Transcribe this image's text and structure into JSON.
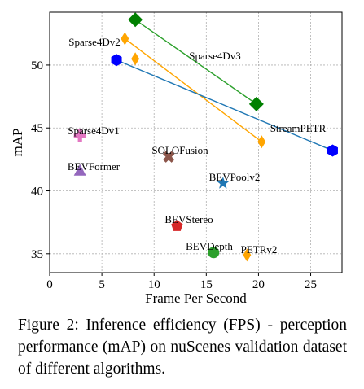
{
  "chart_data": {
    "type": "scatter",
    "xlabel": "Frame Per Second",
    "ylabel": "mAP",
    "xlim": [
      0,
      28
    ],
    "ylim": [
      33.5,
      54.2
    ],
    "xticks": [
      0,
      5,
      10,
      15,
      20,
      25
    ],
    "yticks": [
      35,
      40,
      45,
      50
    ],
    "grid": true,
    "points": [
      {
        "label": "Sparse4Dv2",
        "points": [
          [
            7.2,
            52.1
          ],
          [
            8.2,
            50.5
          ],
          [
            20.3,
            43.9
          ]
        ],
        "color": "#ffa500",
        "marker": "diamond-thin"
      },
      {
        "label": "Sparse4Dv3",
        "points": [
          [
            8.2,
            53.6
          ],
          [
            19.8,
            46.9
          ]
        ],
        "color": "#008000",
        "marker": "diamond"
      },
      {
        "label": "StreamPETR",
        "points": [
          [
            6.4,
            50.4
          ],
          [
            27.1,
            43.2
          ]
        ],
        "color": "#0000ff",
        "marker": "hexagon"
      },
      {
        "label": "Sparse4Dv1",
        "points": [
          [
            2.9,
            44.4
          ]
        ],
        "color": "#e377c2",
        "marker": "plus"
      },
      {
        "label": "BEVFormer",
        "points": [
          [
            2.9,
            41.6
          ]
        ],
        "color": "#9467bd",
        "marker": "triangle"
      },
      {
        "label": "SOLOFusion",
        "points": [
          [
            11.4,
            42.7
          ]
        ],
        "color": "#8c564b",
        "marker": "x"
      },
      {
        "label": "BEVPoolv2",
        "points": [
          [
            16.6,
            40.6
          ]
        ],
        "color": "#1f77b4",
        "marker": "star"
      },
      {
        "label": "BEVStereo",
        "points": [
          [
            12.2,
            37.2
          ]
        ],
        "color": "#d62728",
        "marker": "pentagon"
      },
      {
        "label": "BEVDepth",
        "points": [
          [
            15.7,
            35.1
          ]
        ],
        "color": "#2ca02c",
        "marker": "circle"
      },
      {
        "label": "PETRv2",
        "points": [
          [
            18.9,
            34.9
          ]
        ],
        "color": "#ffa500",
        "marker": "diamond-thin"
      }
    ],
    "lines": [
      {
        "series": "Sparse4Dv2",
        "from": [
          7.2,
          52.1
        ],
        "to": [
          20.3,
          43.9
        ],
        "color": "#ffa500"
      },
      {
        "series": "Sparse4Dv3",
        "from": [
          8.2,
          53.6
        ],
        "to": [
          19.8,
          46.9
        ],
        "color": "#2ca02c"
      },
      {
        "series": "StreamPETR",
        "from": [
          6.4,
          50.4
        ],
        "to": [
          27.1,
          43.2
        ],
        "color": "#1f77b4"
      }
    ]
  },
  "caption": "Figure 2: Inference efficiency (FPS) - perception performance (mAP) on nuScenes validation dataset of different algorithms."
}
